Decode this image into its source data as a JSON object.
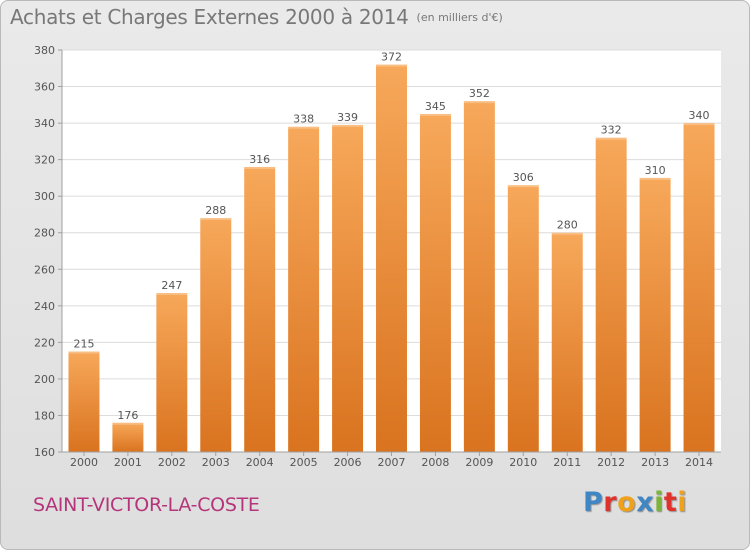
{
  "header": {
    "title": "Achats et Charges Externes 2000 à 2014",
    "subtitle": "(en milliers d'€)"
  },
  "footer": {
    "place": "SAINT-VICTOR-LA-COSTE",
    "brand": "Proxiti",
    "brand_letters": [
      {
        "char": "P",
        "color": "#3f86c5"
      },
      {
        "char": "r",
        "color": "#e0322a"
      },
      {
        "char": "o",
        "color": "#f0a11a"
      },
      {
        "char": "x",
        "color": "#3f86c5"
      },
      {
        "char": "i",
        "color": "#7bb33b"
      },
      {
        "char": "t",
        "color": "#e0322a"
      },
      {
        "char": "i",
        "color": "#f0a11a"
      }
    ]
  },
  "chart_data": {
    "type": "bar",
    "title": "Achats et Charges Externes 2000 à 2014",
    "subtitle": "(en milliers d'€)",
    "categories": [
      "2000",
      "2001",
      "2002",
      "2003",
      "2004",
      "2005",
      "2006",
      "2007",
      "2008",
      "2009",
      "2010",
      "2011",
      "2012",
      "2013",
      "2014"
    ],
    "values": [
      215,
      176,
      247,
      288,
      316,
      338,
      339,
      372,
      345,
      352,
      306,
      280,
      332,
      310,
      340
    ],
    "ylim": [
      160,
      380
    ],
    "yticks": [
      160,
      180,
      200,
      220,
      240,
      260,
      280,
      300,
      320,
      340,
      360,
      380
    ],
    "grid": true,
    "data_labels": true,
    "bar_color_top": "#f7a85a",
    "bar_color_bottom": "#d9731f"
  }
}
